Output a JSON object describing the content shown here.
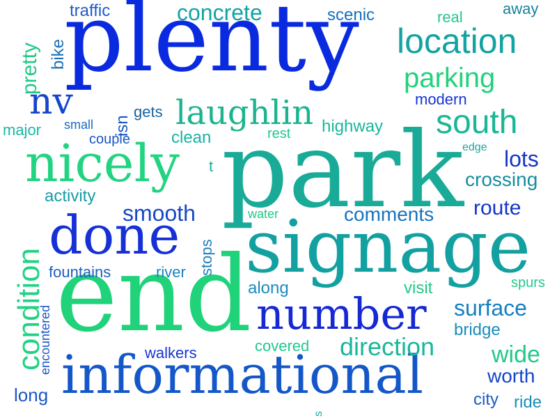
{
  "words": [
    {
      "key": "plenty",
      "text": "plenty",
      "color": "#0a2ae0"
    },
    {
      "key": "park",
      "text": "park",
      "color": "#1aab98"
    },
    {
      "key": "end",
      "text": "end",
      "color": "#20d27a"
    },
    {
      "key": "signage",
      "text": "signage",
      "color": "#12a0a0"
    },
    {
      "key": "informational",
      "text": "informational",
      "color": "#1457c9"
    },
    {
      "key": "nicely",
      "text": "nicely",
      "color": "#22d481"
    },
    {
      "key": "done",
      "text": "done",
      "color": "#1630d6"
    },
    {
      "key": "number",
      "text": "number",
      "color": "#1528d3"
    },
    {
      "key": "laughlin",
      "text": "laughlin",
      "color": "#1cb48e"
    },
    {
      "key": "location",
      "text": "location",
      "color": "#14a3a2"
    },
    {
      "key": "parking",
      "text": "parking",
      "color": "#22d27c"
    },
    {
      "key": "south",
      "text": "south",
      "color": "#1ab696"
    },
    {
      "key": "condition",
      "text": "condition",
      "color": "#20d283"
    },
    {
      "key": "nv",
      "text": "nv",
      "color": "#1545cc"
    },
    {
      "key": "concrete",
      "text": "concrete",
      "color": "#13a3a3"
    },
    {
      "key": "traffic",
      "text": "traffic",
      "color": "#1f5ac8"
    },
    {
      "key": "scenic",
      "text": "scenic",
      "color": "#1570bf"
    },
    {
      "key": "real",
      "text": "real",
      "color": "#22c88b"
    },
    {
      "key": "away",
      "text": "away",
      "color": "#16839a"
    },
    {
      "key": "pretty",
      "text": "pretty",
      "color": "#22c888"
    },
    {
      "key": "bike",
      "text": "bike",
      "color": "#1d6fb4"
    },
    {
      "key": "modern",
      "text": "modern",
      "color": "#1735d4"
    },
    {
      "key": "gets",
      "text": "gets",
      "color": "#16649f"
    },
    {
      "key": "major",
      "text": "major",
      "color": "#18b7a5"
    },
    {
      "key": "small",
      "text": "small",
      "color": "#1c68c2"
    },
    {
      "key": "isn",
      "text": "isn",
      "color": "#1a56c6"
    },
    {
      "key": "couple",
      "text": "couple",
      "color": "#1a56c3"
    },
    {
      "key": "clean",
      "text": "clean",
      "color": "#17b4a1"
    },
    {
      "key": "rest",
      "text": "rest",
      "color": "#22c690"
    },
    {
      "key": "highway",
      "text": "highway",
      "color": "#1ab69a"
    },
    {
      "key": "edge",
      "text": "edge",
      "color": "#19a8a0"
    },
    {
      "key": "lots",
      "text": "lots",
      "color": "#1436c9"
    },
    {
      "key": "crossing",
      "text": "crossing",
      "color": "#148da0"
    },
    {
      "key": "t",
      "text": "t",
      "color": "#16b09e"
    },
    {
      "key": "activity",
      "text": "activity",
      "color": "#169ca6"
    },
    {
      "key": "smooth",
      "text": "smooth",
      "color": "#1748c8"
    },
    {
      "key": "water",
      "text": "water",
      "color": "#22c888"
    },
    {
      "key": "comments",
      "text": "comments",
      "color": "#1672be"
    },
    {
      "key": "route",
      "text": "route",
      "color": "#1436c9"
    },
    {
      "key": "stops",
      "text": "stops",
      "color": "#1a7fbc"
    },
    {
      "key": "fountains",
      "text": "fountains",
      "color": "#1c5fc0"
    },
    {
      "key": "river",
      "text": "river",
      "color": "#1a84c1"
    },
    {
      "key": "along",
      "text": "along",
      "color": "#1a8bbf"
    },
    {
      "key": "visit",
      "text": "visit",
      "color": "#22c888"
    },
    {
      "key": "spurs",
      "text": "spurs",
      "color": "#22c88d"
    },
    {
      "key": "surface",
      "text": "surface",
      "color": "#1580c0"
    },
    {
      "key": "bridge",
      "text": "bridge",
      "color": "#1a8bbf"
    },
    {
      "key": "encountered",
      "text": "encountered",
      "color": "#1a56c6"
    },
    {
      "key": "walkers",
      "text": "walkers",
      "color": "#1535d2"
    },
    {
      "key": "covered",
      "text": "covered",
      "color": "#22c88d"
    },
    {
      "key": "direction",
      "text": "direction",
      "color": "#1ab69a"
    },
    {
      "key": "wide",
      "text": "wide",
      "color": "#22c888"
    },
    {
      "key": "worth",
      "text": "worth",
      "color": "#1445cc"
    },
    {
      "key": "long",
      "text": "long",
      "color": "#1a56c6"
    },
    {
      "key": "city",
      "text": "city",
      "color": "#1a5ac2"
    },
    {
      "key": "ride",
      "text": "ride",
      "color": "#1890b4"
    },
    {
      "key": "s",
      "text": "s",
      "color": "#1aa8a0"
    }
  ]
}
